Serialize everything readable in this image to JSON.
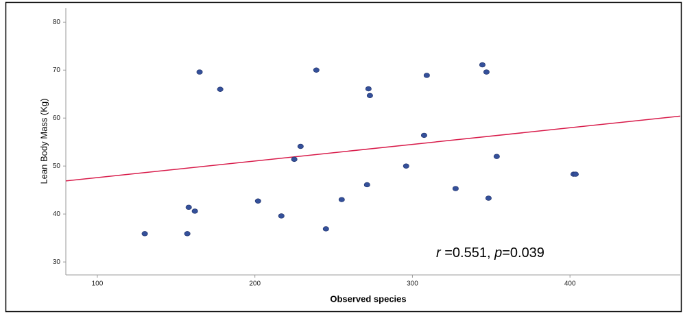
{
  "chart_data": {
    "type": "scatter",
    "x_label": "Observed species",
    "y_label": "Lean Body Mass (Kg)",
    "xlim": [
      80,
      470
    ],
    "ylim": [
      27.3,
      82.9
    ],
    "xticks": [
      100,
      200,
      300,
      400
    ],
    "yticks": [
      30,
      40,
      50,
      60,
      70,
      80
    ],
    "grid": false,
    "series": [
      {
        "color": "#34509a",
        "x": [
          130.1,
          157.1,
          158.0,
          161.9,
          164.9,
          178.0,
          202.0,
          216.8,
          225.0,
          229.0,
          239.0,
          245.1,
          255.1,
          271.2,
          272.1,
          273.0,
          296.0,
          307.4,
          309.1,
          327.4,
          344.4,
          347.0,
          348.3,
          353.5,
          402.3,
          403.6
        ],
        "values": [
          35.9,
          35.9,
          41.4,
          40.6,
          69.6,
          66.0,
          42.7,
          39.6,
          51.4,
          54.1,
          70.0,
          36.9,
          43.0,
          46.1,
          66.1,
          64.7,
          50.0,
          56.4,
          68.9,
          45.3,
          71.1,
          69.6,
          43.3,
          52.0,
          48.3,
          48.3
        ]
      }
    ],
    "fit_line": {
      "color": "#d81b4a",
      "x": [
        80,
        470
      ],
      "y": [
        46.9,
        60.4
      ]
    },
    "annotation": [
      {
        "text": "r",
        "italic": true
      },
      {
        "text": " =0.551, ",
        "italic": false
      },
      {
        "text": "p",
        "italic": true
      },
      {
        "text": "=0.039",
        "italic": false
      }
    ]
  }
}
